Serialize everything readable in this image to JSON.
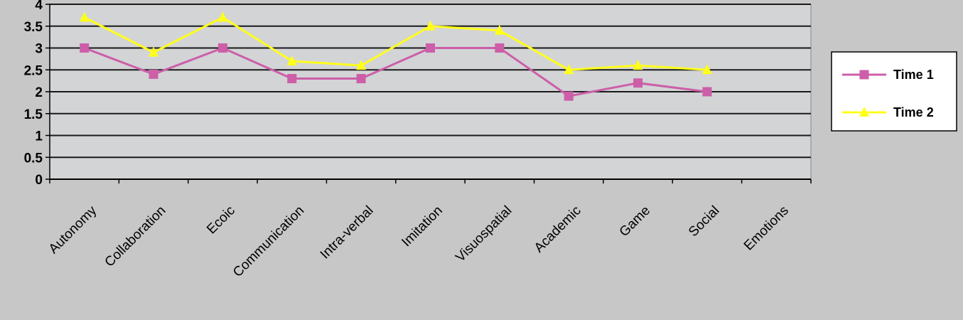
{
  "chart_data": {
    "type": "line",
    "categories": [
      "Autonomy",
      "Collaboration",
      "Ecoic",
      "Communication",
      "Intra-verbal",
      "Imitation",
      "Visuospatial",
      "Academic",
      "Game",
      "Social",
      "Emotions"
    ],
    "series": [
      {
        "name": "Time 1",
        "values": [
          3.0,
          2.4,
          3.0,
          2.3,
          2.3,
          3.0,
          3.0,
          1.9,
          2.2,
          2.0,
          null
        ],
        "color": "#cc5fa8",
        "marker": "square"
      },
      {
        "name": "Time 2",
        "values": [
          3.7,
          2.9,
          3.7,
          2.7,
          2.6,
          3.5,
          3.4,
          2.5,
          2.6,
          2.5,
          null
        ],
        "color": "#ffff1a",
        "marker": "triangle"
      }
    ],
    "yticks": [
      "0",
      "0.5",
      "1",
      "1.5",
      "2",
      "2.5",
      "3",
      "3.5",
      "4"
    ],
    "ylim": [
      0,
      4
    ],
    "grid": true,
    "plot_background": "#d3d4d6",
    "gridline_color": "#1a1a1a",
    "legend_placement": "right"
  }
}
